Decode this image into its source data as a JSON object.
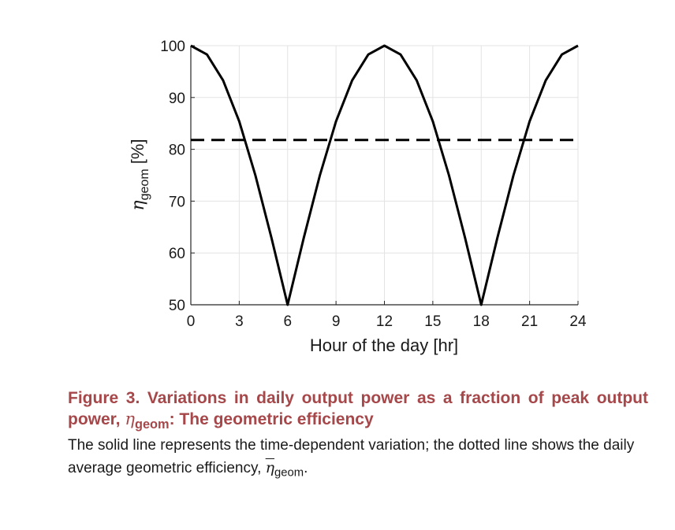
{
  "chart_data": {
    "type": "line",
    "xlabel": "Hour of the day [hr]",
    "ylabel_symbol": "η",
    "ylabel_subscript": "geom",
    "ylabel_unit": " [%]",
    "xlim": [
      0,
      24
    ],
    "ylim": [
      50,
      100
    ],
    "xticks": [
      0,
      3,
      6,
      9,
      12,
      15,
      18,
      21,
      24
    ],
    "yticks": [
      50,
      60,
      70,
      80,
      90,
      100
    ],
    "grid": true,
    "series": [
      {
        "style": "solid",
        "color": "#000000",
        "x": [
          0,
          1,
          2,
          3,
          4,
          5,
          6,
          7,
          8,
          9,
          10,
          11,
          12,
          13,
          14,
          15,
          16,
          17,
          18,
          19,
          20,
          21,
          22,
          23,
          24
        ],
        "values": [
          100,
          98.3,
          93.3,
          85.4,
          75,
          62.9,
          50,
          62.9,
          75,
          85.4,
          93.3,
          98.3,
          100,
          98.3,
          93.3,
          85.4,
          75,
          62.9,
          50,
          62.9,
          75,
          85.4,
          93.3,
          98.3,
          100
        ]
      },
      {
        "style": "dashed",
        "color": "#000000",
        "x": [
          0,
          24
        ],
        "values": [
          81.8,
          81.8
        ]
      }
    ]
  },
  "caption": {
    "title_prefix": "Figure 3. Variations in daily output power as a fraction of peak output power, ",
    "title_symbol": "η",
    "title_subscript": "geom",
    "title_suffix": ": The geometric efficiency",
    "title_color": "#a6474a",
    "body_prefix": "The solid line represents the time-dependent variation; the dotted line shows the daily average geometric efficiency, ",
    "body_symbol": "η",
    "body_subscript": "geom",
    "body_suffix": "."
  }
}
